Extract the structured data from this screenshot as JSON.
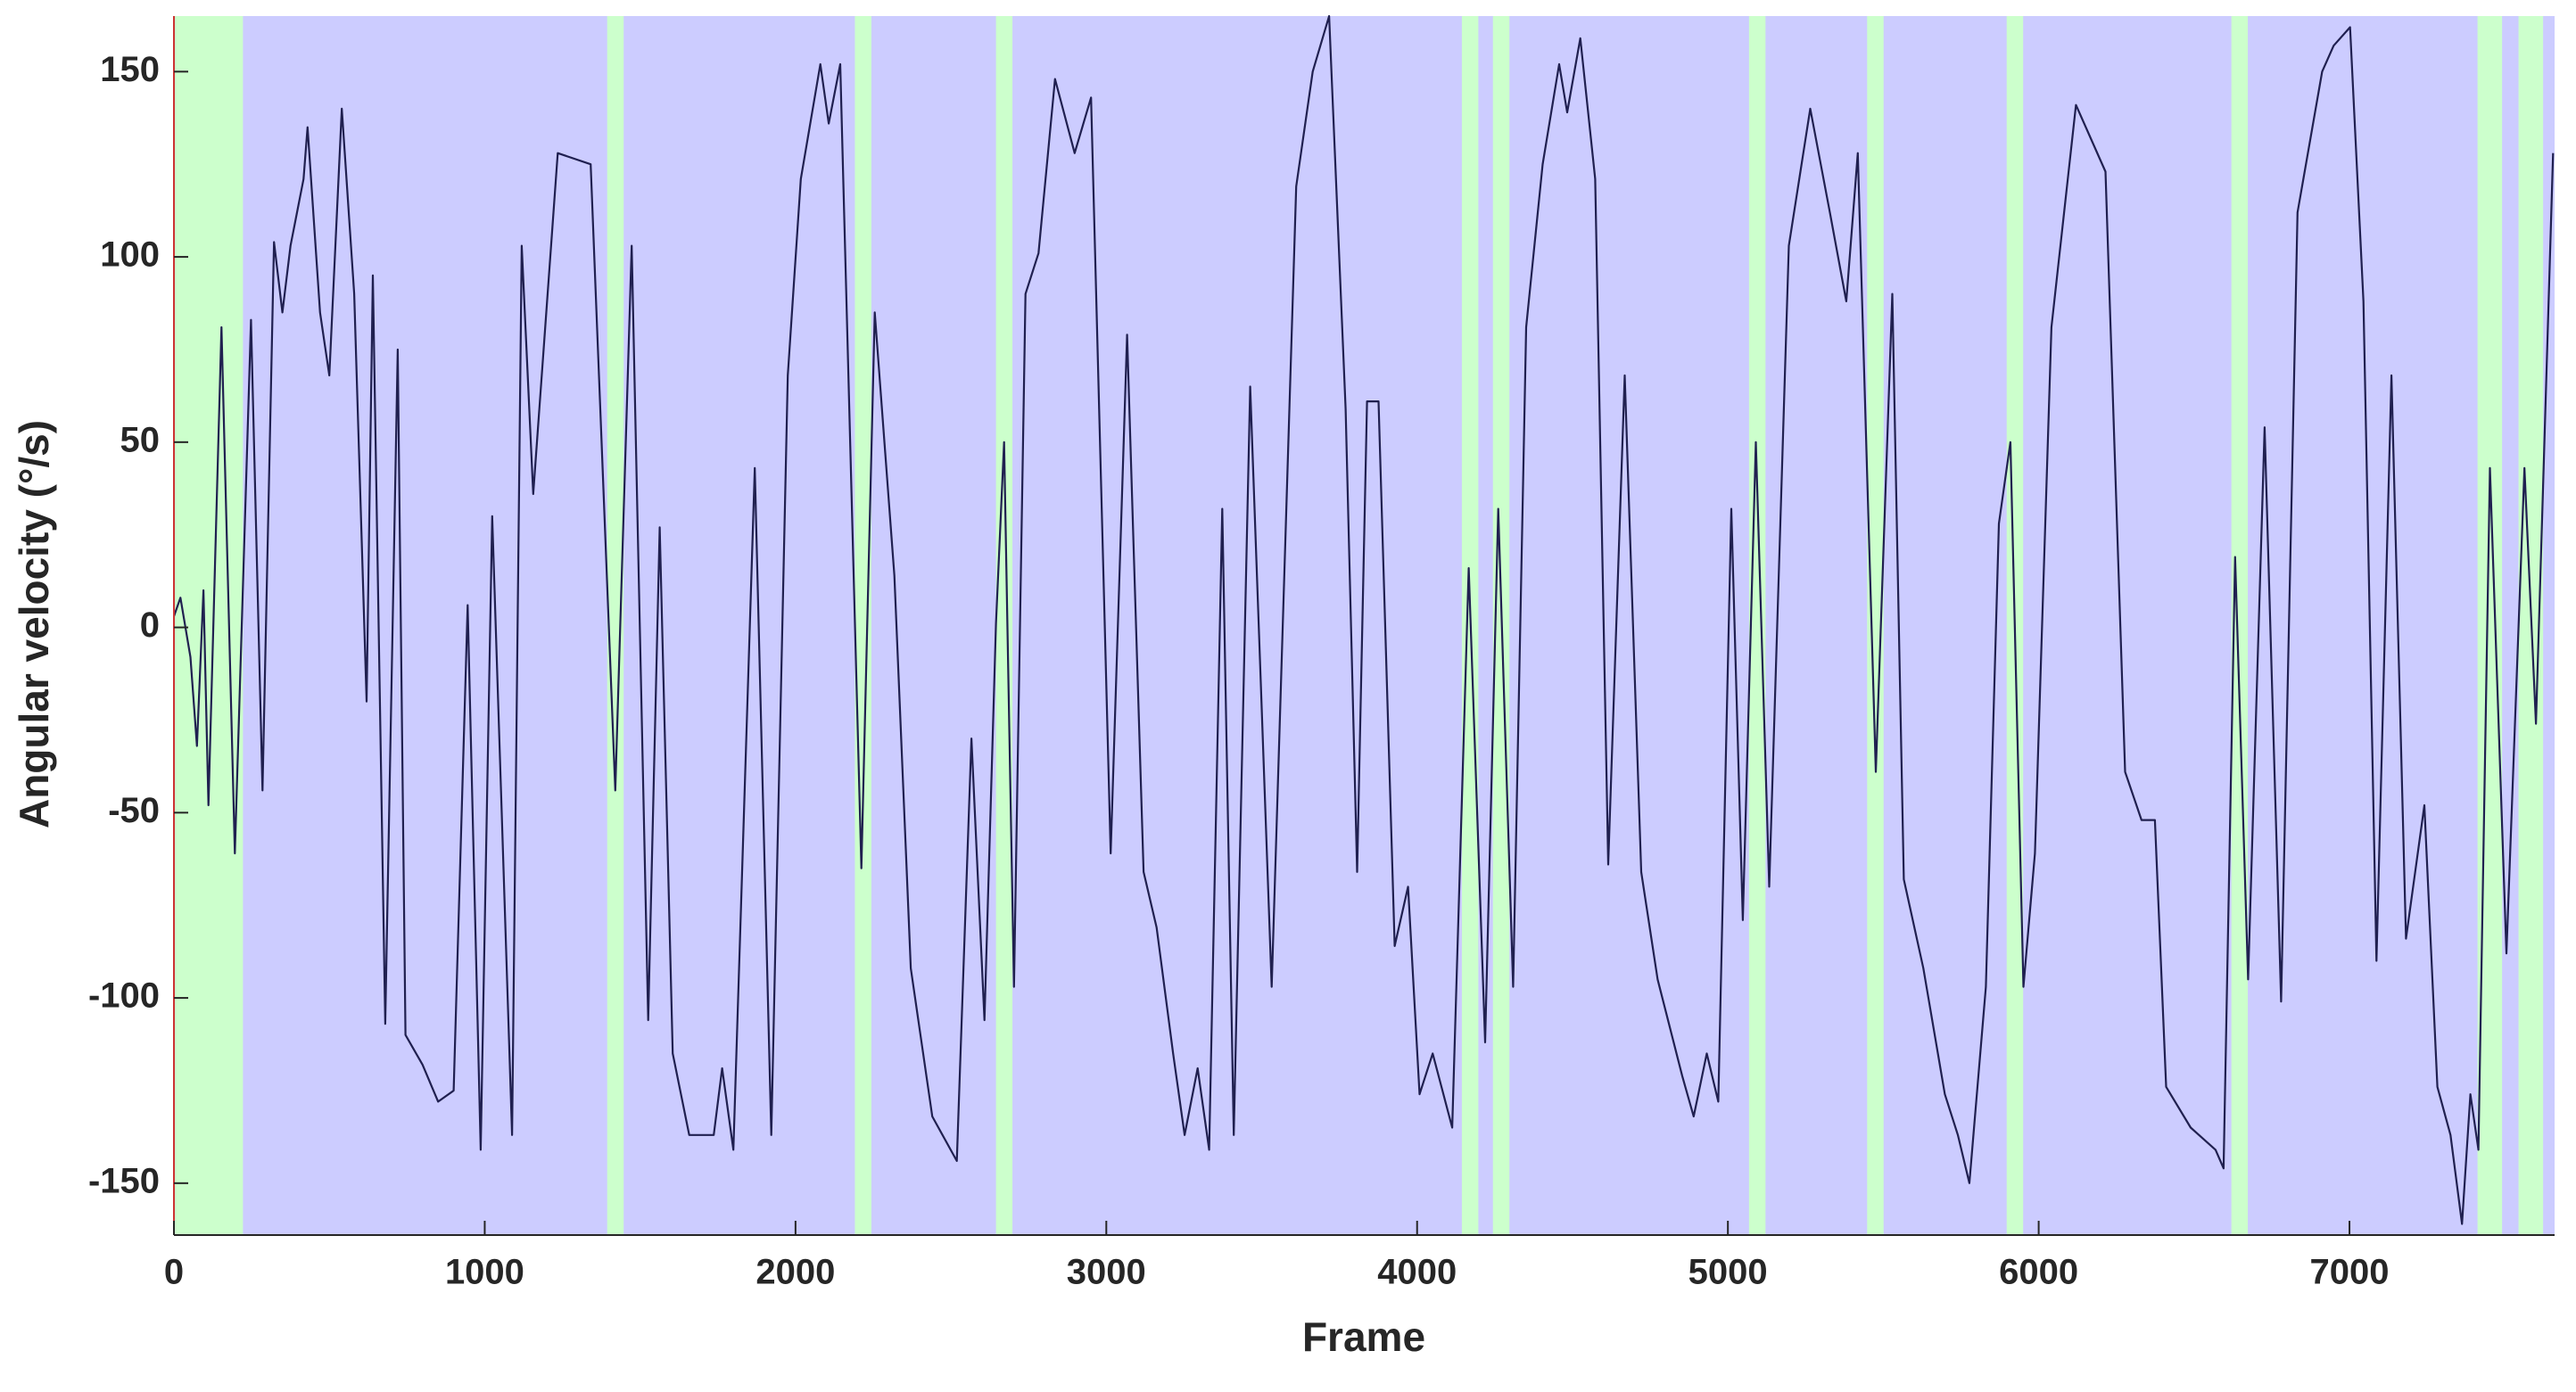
{
  "chart_data": {
    "type": "line",
    "xlabel": "Frame",
    "ylabel": "Angular velocity (°/s)",
    "xlim": [
      0,
      7660
    ],
    "ylim": [
      -164,
      165
    ],
    "xticks": [
      0,
      1000,
      2000,
      3000,
      4000,
      5000,
      6000,
      7000
    ],
    "yticks": [
      -150,
      -100,
      -50,
      0,
      50,
      100,
      150
    ],
    "plot_color": "#ccccff",
    "highlight_color": "#ccffcc",
    "highlights": [
      [
        0,
        222
      ],
      [
        1394,
        1447
      ],
      [
        2191,
        2244
      ],
      [
        2645,
        2698
      ],
      [
        4144,
        4197
      ],
      [
        4244,
        4297
      ],
      [
        5068,
        5121
      ],
      [
        5448,
        5501
      ],
      [
        5897,
        5950
      ],
      [
        6620,
        6673
      ],
      [
        7412,
        7491
      ],
      [
        7544,
        7623
      ]
    ],
    "x": [
      0,
      21,
      53,
      74,
      95,
      111,
      153,
      196,
      248,
      285,
      322,
      349,
      375,
      417,
      430,
      470,
      500,
      540,
      580,
      620,
      640,
      680,
      720,
      745,
      800,
      850,
      900,
      945,
      987,
      1024,
      1088,
      1119,
      1156,
      1235,
      1341,
      1420,
      1473,
      1526,
      1563,
      1605,
      1658,
      1737,
      1764,
      1800,
      1869,
      1922,
      1975,
      2017,
      2080,
      2107,
      2144,
      2212,
      2255,
      2318,
      2371,
      2440,
      2519,
      2566,
      2608,
      2645,
      2671,
      2703,
      2740,
      2782,
      2835,
      2898,
      2951,
      3014,
      3067,
      3120,
      3162,
      3215,
      3252,
      3294,
      3331,
      3373,
      3410,
      3463,
      3532,
      3611,
      3664,
      3717,
      3770,
      3807,
      3839,
      3876,
      3928,
      3971,
      4008,
      4050,
      4113,
      4166,
      4219,
      4261,
      4309,
      4351,
      4404,
      4457,
      4483,
      4525,
      4573,
      4615,
      4668,
      4721,
      4774,
      4853,
      4890,
      4932,
      4969,
      5011,
      5048,
      5090,
      5133,
      5196,
      5265,
      5328,
      5381,
      5418,
      5476,
      5529,
      5566,
      5629,
      5698,
      5740,
      5777,
      5830,
      5872,
      5909,
      5951,
      5988,
      6041,
      6120,
      6215,
      6278,
      6331,
      6374,
      6410,
      6489,
      6569,
      6595,
      6632,
      6674,
      6727,
      6780,
      6833,
      6912,
      6949,
      7002,
      7045,
      7087,
      7135,
      7182,
      7241,
      7283,
      7325,
      7362,
      7389,
      7415,
      7452,
      7505,
      7563,
      7600,
      7655
    ],
    "series": [
      {
        "color": "#202050",
        "values": [
          3,
          8,
          -8,
          -32,
          10,
          -48,
          81,
          -61,
          83,
          -44,
          104,
          85,
          103,
          121,
          135,
          85,
          68,
          140,
          90,
          -20,
          95,
          -107,
          75,
          -110,
          -118,
          -128,
          -125,
          6,
          -141,
          30,
          -137,
          103,
          36,
          128,
          125,
          -44,
          103,
          -106,
          27,
          -115,
          -137,
          -137,
          -119,
          -141,
          43,
          -137,
          68,
          121,
          152,
          136,
          152,
          -65,
          85,
          14,
          -92,
          -132,
          -144,
          -30,
          -106,
          1,
          50,
          -97,
          90,
          101,
          148,
          128,
          143,
          -61,
          79,
          -66,
          -81,
          -115,
          -137,
          -119,
          -141,
          32,
          -137,
          65,
          -97,
          119,
          150,
          165,
          59,
          -66,
          61,
          61,
          -86,
          -70,
          -126,
          -115,
          -135,
          16,
          -112,
          32,
          -97,
          81,
          125,
          152,
          139,
          159,
          121,
          -64,
          68,
          -66,
          -95,
          -121,
          -132,
          -115,
          -128,
          32,
          -79,
          50,
          -70,
          103,
          140,
          112,
          88,
          128,
          -39,
          90,
          -68,
          -92,
          -126,
          -137,
          -150,
          -97,
          28,
          50,
          -97,
          -61,
          81,
          141,
          123,
          -39,
          -52,
          -52,
          -124,
          -135,
          -141,
          -146,
          19,
          -95,
          54,
          -101,
          112,
          150,
          157,
          162,
          88,
          -90,
          68,
          -84,
          -48,
          -124,
          -137,
          -161,
          -126,
          -141,
          43,
          -88,
          43,
          -26,
          128
        ]
      }
    ]
  }
}
